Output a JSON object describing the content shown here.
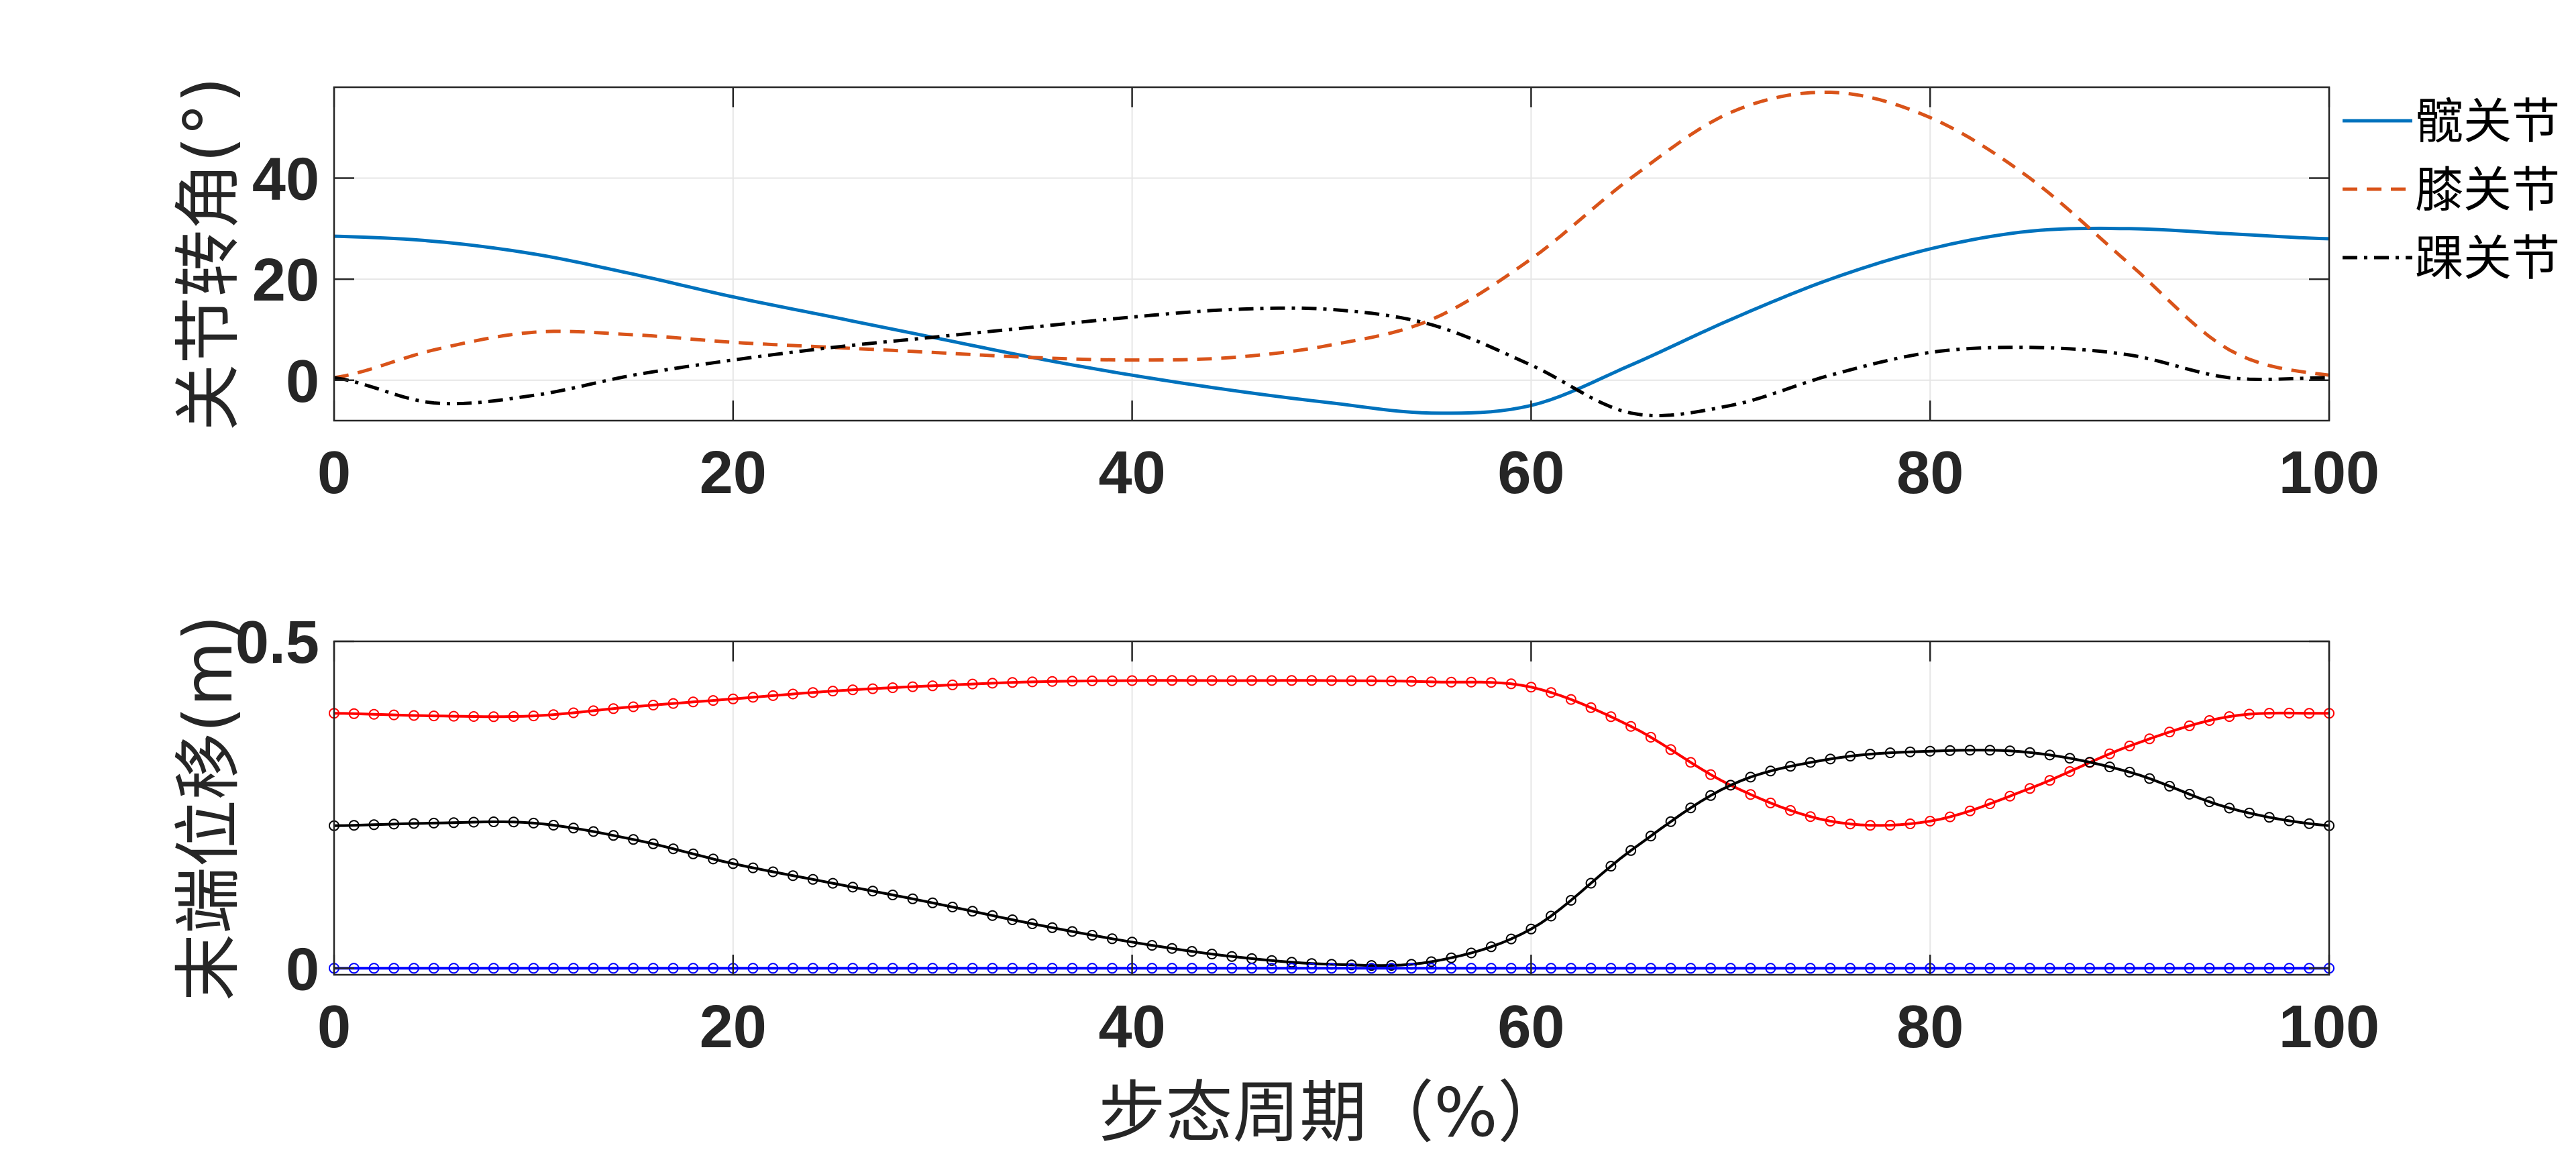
{
  "chart_data": [
    {
      "type": "line",
      "ylabel": "关节转角(°)",
      "xlabel": "",
      "xlim": [
        0,
        100
      ],
      "ylim": [
        -8,
        58
      ],
      "xticks": [
        0,
        20,
        40,
        60,
        80,
        100
      ],
      "xtick_labels": [
        "0",
        "20",
        "40",
        "60",
        "80",
        "100"
      ],
      "yticks": [
        0,
        20,
        40
      ],
      "ytick_labels": [
        "0",
        "20",
        "40"
      ],
      "grid": true,
      "legend_position": "outside-right",
      "x": [
        0,
        5,
        10,
        15,
        20,
        25,
        30,
        35,
        40,
        45,
        50,
        55,
        60,
        65,
        70,
        75,
        80,
        85,
        90,
        95,
        100
      ],
      "series": [
        {
          "name": "髋关节",
          "color": "#0072BD",
          "style": "solid",
          "values": [
            28.5,
            27.5,
            25,
            21,
            16.5,
            12.5,
            8.5,
            4.5,
            1,
            -2,
            -4.5,
            -6.5,
            -5,
            3,
            12,
            20,
            26,
            29.5,
            30,
            29,
            28
          ]
        },
        {
          "name": "膝关节",
          "color": "#D95319",
          "style": "dashed",
          "values": [
            0.5,
            6,
            9.5,
            9,
            7.5,
            6.5,
            5.5,
            4.5,
            4,
            4.5,
            7,
            12,
            24,
            40,
            53,
            57,
            52,
            40,
            23,
            6,
            1
          ]
        },
        {
          "name": "踝关节",
          "color": "#000000",
          "style": "dashdot",
          "values": [
            0.5,
            -4.5,
            -3,
            1,
            4,
            6.5,
            8.5,
            10.5,
            12.5,
            14,
            14,
            11,
            3,
            -6.5,
            -5,
            1,
            5.5,
            6.5,
            5,
            0.5,
            0.5
          ]
        }
      ]
    },
    {
      "type": "line",
      "ylabel": "末端位移(m)",
      "xlabel": "步态周期（%）",
      "xlim": [
        0,
        100
      ],
      "ylim": [
        -0.01,
        0.5
      ],
      "xticks": [
        0,
        20,
        40,
        60,
        80,
        100
      ],
      "xtick_labels": [
        "0",
        "20",
        "40",
        "60",
        "80",
        "100"
      ],
      "yticks": [
        0,
        0.5
      ],
      "ytick_labels": [
        "0",
        "0.5"
      ],
      "grid": true,
      "markers": "circle",
      "x": [
        0,
        5,
        10,
        15,
        20,
        25,
        30,
        35,
        40,
        45,
        50,
        55,
        60,
        65,
        70,
        75,
        80,
        85,
        90,
        95,
        100
      ],
      "series": [
        {
          "color": "#FF0000",
          "values": [
            0.39,
            0.386,
            0.386,
            0.4,
            0.412,
            0.424,
            0.432,
            0.438,
            0.44,
            0.44,
            0.44,
            0.438,
            0.43,
            0.37,
            0.28,
            0.225,
            0.225,
            0.275,
            0.34,
            0.385,
            0.39
          ]
        },
        {
          "color": "#000000",
          "values": [
            0.218,
            0.222,
            0.222,
            0.197,
            0.16,
            0.13,
            0.1,
            0.068,
            0.04,
            0.018,
            0.006,
            0.01,
            0.06,
            0.18,
            0.28,
            0.32,
            0.332,
            0.33,
            0.3,
            0.245,
            0.218
          ]
        },
        {
          "color": "#0000FF",
          "values": [
            0,
            0,
            0,
            0,
            0,
            0,
            0,
            0,
            0,
            0,
            0,
            0,
            0,
            0,
            0,
            0,
            0,
            0,
            0,
            0,
            0
          ]
        }
      ]
    }
  ]
}
